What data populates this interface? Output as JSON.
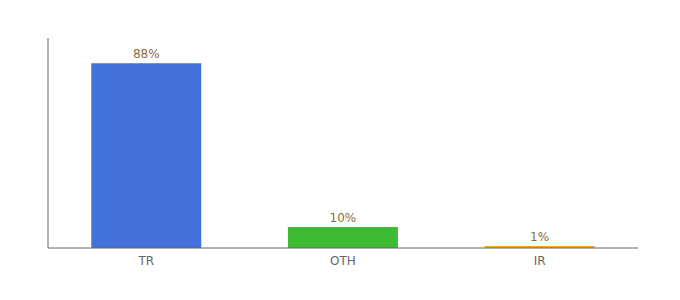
{
  "chart_data": {
    "type": "bar",
    "categories": [
      "TR",
      "OTH",
      "IR"
    ],
    "values": [
      88,
      10,
      1
    ],
    "value_labels": [
      "88%",
      "10%",
      "1%"
    ],
    "data_labels": true,
    "colors": [
      "#4472db",
      "#3dbb35",
      "#f5a623"
    ],
    "ylim": [
      0,
      100
    ],
    "tick_labels": "x",
    "grid": false
  }
}
